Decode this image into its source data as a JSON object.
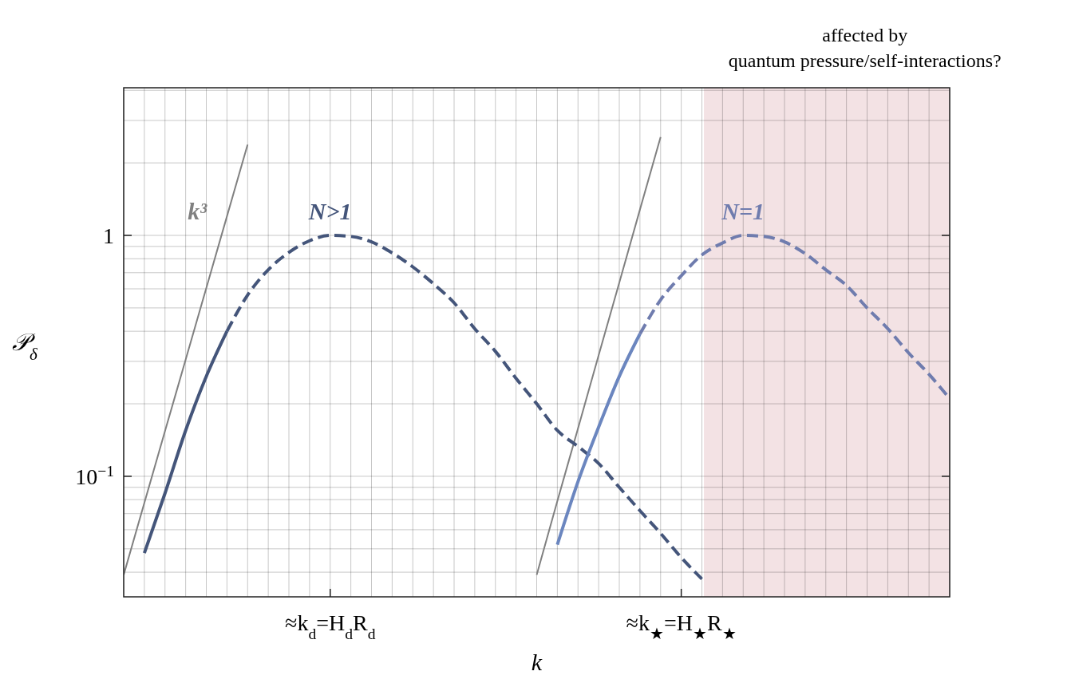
{
  "chart_data": {
    "type": "line",
    "xlabel": "k",
    "ylabel": "𝒫$_{δ}$",
    "log": "y",
    "grid": true,
    "categories": [
      null,
      null,
      null,
      null,
      null,
      null,
      null,
      null,
      null,
      null,
      "≈k$_{d}$=H$_{d}$R$_{d}$",
      null,
      null,
      null,
      null,
      null,
      null,
      null,
      null,
      null,
      null,
      null,
      null,
      null,
      null,
      null,
      null,
      "≈k$_{★}$=H$_{★}$R$_{★}$",
      null,
      null,
      null,
      null,
      null,
      null,
      null,
      null,
      null,
      null,
      null,
      null,
      null
    ],
    "ylim": [
      0.0316,
      4.1
    ],
    "yticks": [
      1,
      {
        "value": 0.1,
        "label": "10$^{−1}$"
      }
    ],
    "annotations": [
      "affected by\nquantum pressure/self-interactions?"
    ],
    "series": [
      {
        "name": "k³",
        "color": "#808080",
        "line_style": "solid",
        "values": [
          0.039,
          0.0776,
          0.154,
          0.305,
          0.605,
          1.2,
          2.38,
          null,
          null,
          null,
          null,
          null,
          null,
          null,
          null,
          null,
          null,
          null,
          null,
          null,
          null,
          null,
          null,
          null,
          null,
          null,
          null,
          null,
          null,
          null,
          null,
          null,
          null,
          null,
          null,
          null,
          null,
          null,
          null,
          null,
          null
        ]
      },
      {
        "color": "#808080",
        "line_style": "solid",
        "values": [
          null,
          null,
          null,
          null,
          null,
          null,
          null,
          null,
          null,
          null,
          null,
          null,
          null,
          null,
          null,
          null,
          null,
          null,
          null,
          null,
          0.039,
          0.0789,
          0.158,
          0.318,
          0.637,
          1.28,
          2.56,
          null,
          null,
          null,
          null,
          null,
          null,
          null,
          null,
          null,
          null,
          null,
          null,
          null,
          null
        ]
      },
      {
        "color": "#44557a",
        "line_style": "solid",
        "values": [
          null,
          0.048,
          0.085,
          0.155,
          0.26,
          0.4,
          null,
          null,
          null,
          null,
          null,
          null,
          null,
          null,
          null,
          null,
          null,
          null,
          null,
          null,
          null,
          null,
          null,
          null,
          null,
          null,
          null,
          null,
          null,
          null,
          null,
          null,
          null,
          null,
          null,
          null,
          null,
          null,
          null,
          null,
          null
        ]
      },
      {
        "name": "N>1",
        "color": "#44557a",
        "line_style": "dashed",
        "values": [
          null,
          null,
          null,
          null,
          null,
          0.4,
          0.565,
          0.72,
          0.85,
          0.95,
          1,
          0.99,
          0.94,
          0.846,
          0.74,
          0.63,
          0.525,
          0.41,
          0.33,
          0.255,
          0.2,
          0.155,
          0.133,
          0.113,
          0.09,
          0.072,
          0.058,
          0.046,
          0.0375,
          null,
          null,
          null,
          null,
          null,
          null,
          null,
          null,
          null,
          null,
          null,
          null
        ]
      },
      {
        "color": "#6b86bf",
        "line_style": "solid",
        "values": [
          null,
          null,
          null,
          null,
          null,
          null,
          null,
          null,
          null,
          null,
          null,
          null,
          null,
          null,
          null,
          null,
          null,
          null,
          null,
          null,
          null,
          0.052,
          0.095,
          0.16,
          0.26,
          0.39,
          null,
          null,
          null,
          null,
          null,
          null,
          null,
          null,
          null,
          null,
          null,
          null,
          null,
          null,
          null
        ]
      },
      {
        "name": "N=1",
        "color": "#6f7cae",
        "line_style": "dashed",
        "values": [
          null,
          null,
          null,
          null,
          null,
          null,
          null,
          null,
          null,
          null,
          null,
          null,
          null,
          null,
          null,
          null,
          null,
          null,
          null,
          null,
          null,
          null,
          null,
          null,
          null,
          0.39,
          0.54,
          0.68,
          0.83,
          0.93,
          1,
          0.99,
          0.94,
          0.84,
          0.72,
          0.62,
          0.5,
          0.41,
          0.326,
          0.265,
          0.21
        ]
      }
    ]
  }
}
